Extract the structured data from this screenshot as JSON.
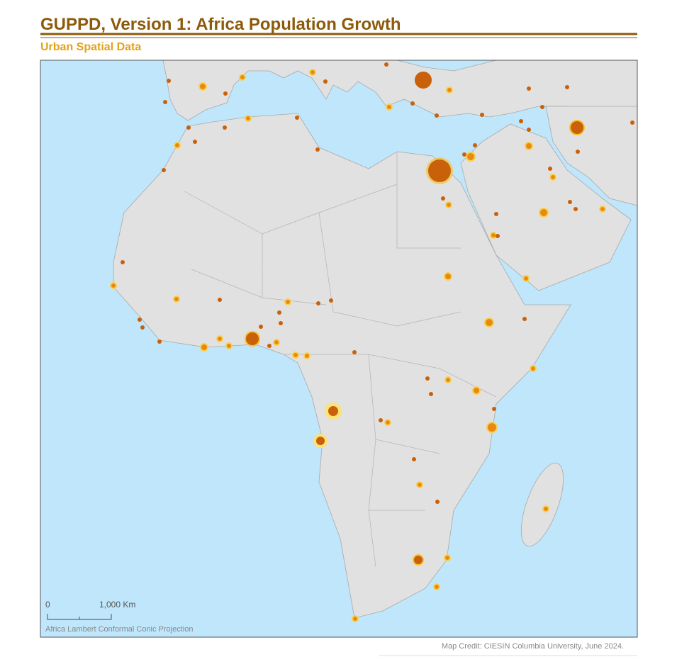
{
  "header": {
    "title": "GUPPD, Version 1: Africa Population Growth",
    "subtitle": "Urban Spatial Data"
  },
  "map": {
    "scale_bar": {
      "start_label": "0",
      "end_label": "1,000 Km"
    },
    "projection": "Africa Lambert Conformal Conic Projection"
  },
  "footer": {
    "credit": "Map Credit: CIESIN Columbia University, June 2024."
  }
}
